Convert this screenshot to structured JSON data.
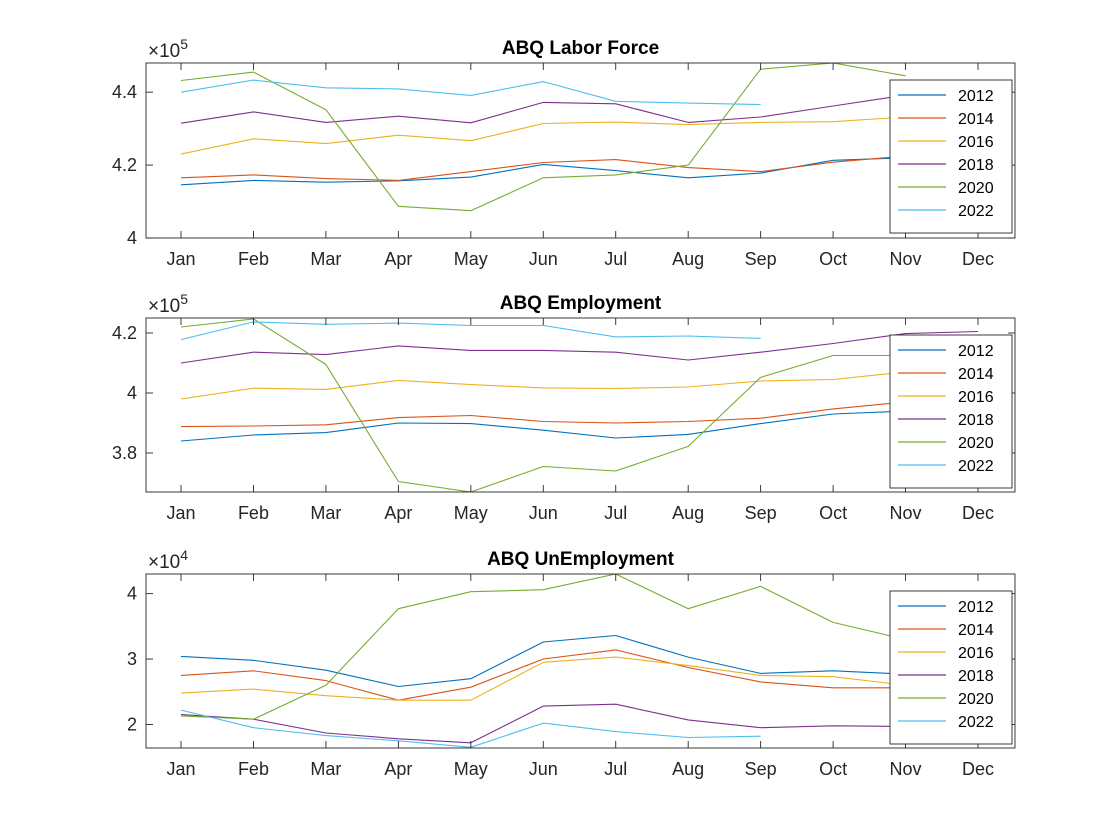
{
  "chart_data": [
    {
      "type": "line",
      "title": "ABQ Labor Force",
      "multiplier": "×10",
      "exponent": "5",
      "categories": [
        "Jan",
        "Feb",
        "Mar",
        "Apr",
        "May",
        "Jun",
        "Jul",
        "Aug",
        "Sep",
        "Oct",
        "Nov",
        "Dec"
      ],
      "ylim": [
        400000,
        448000
      ],
      "yticks": [
        400000,
        420000,
        440000
      ],
      "ytick_labels": [
        "4",
        "4.2",
        "4.4"
      ],
      "legend": "top-right",
      "grid": false,
      "series": [
        {
          "name": "2012",
          "color": "#0072BD",
          "values": [
            414600,
            415800,
            415300,
            415700,
            416700,
            420200,
            418500,
            416500,
            417800,
            421300,
            422000,
            null
          ]
        },
        {
          "name": "2014",
          "color": "#D95319",
          "values": [
            416500,
            417300,
            416300,
            415800,
            418200,
            420700,
            421500,
            419300,
            418200,
            420800,
            422500,
            null
          ]
        },
        {
          "name": "2016",
          "color": "#EDB120",
          "values": [
            423000,
            427200,
            425900,
            428200,
            426700,
            431400,
            431800,
            431100,
            431700,
            431900,
            433200,
            null
          ]
        },
        {
          "name": "2018",
          "color": "#7E2F8E",
          "values": [
            431500,
            434600,
            431700,
            433400,
            431600,
            437200,
            436800,
            431700,
            433200,
            436200,
            439200,
            null
          ]
        },
        {
          "name": "2020",
          "color": "#77AC30",
          "values": [
            443200,
            445500,
            435200,
            408700,
            407500,
            416500,
            417300,
            420000,
            446300,
            448000,
            444500,
            null
          ]
        },
        {
          "name": "2022",
          "color": "#4DBEEE",
          "values": [
            440000,
            443300,
            441200,
            440900,
            439100,
            442900,
            437500,
            437000,
            436600,
            null,
            null,
            null
          ]
        }
      ]
    },
    {
      "type": "line",
      "title": "ABQ Employment",
      "multiplier": "×10",
      "exponent": "5",
      "categories": [
        "Jan",
        "Feb",
        "Mar",
        "Apr",
        "May",
        "Jun",
        "Jul",
        "Aug",
        "Sep",
        "Oct",
        "Nov",
        "Dec"
      ],
      "ylim": [
        367000,
        425000
      ],
      "yticks": [
        380000,
        400000,
        420000
      ],
      "ytick_labels": [
        "3.8",
        "4",
        "4.2"
      ],
      "legend": "top-right",
      "grid": false,
      "series": [
        {
          "name": "2012",
          "color": "#0072BD",
          "values": [
            384000,
            386000,
            386800,
            390000,
            389800,
            387600,
            385000,
            386200,
            389800,
            393000,
            394000,
            null
          ]
        },
        {
          "name": "2014",
          "color": "#D95319",
          "values": [
            388800,
            389000,
            389400,
            391800,
            392500,
            390500,
            390000,
            390500,
            391600,
            394700,
            397000,
            null
          ]
        },
        {
          "name": "2016",
          "color": "#EDB120",
          "values": [
            398000,
            401600,
            401200,
            404200,
            402800,
            401700,
            401500,
            402000,
            404000,
            404500,
            407000,
            null
          ]
        },
        {
          "name": "2018",
          "color": "#7E2F8E",
          "values": [
            410000,
            413600,
            412800,
            415700,
            414200,
            414200,
            413600,
            411000,
            413600,
            416500,
            419800,
            420500
          ]
        },
        {
          "name": "2020",
          "color": "#77AC30",
          "values": [
            422000,
            424700,
            409500,
            370500,
            367000,
            375500,
            374000,
            382200,
            405200,
            412500,
            412500,
            null
          ]
        },
        {
          "name": "2022",
          "color": "#4DBEEE",
          "values": [
            417800,
            423700,
            422900,
            423300,
            422500,
            422500,
            418700,
            419000,
            418200,
            null,
            null,
            null
          ]
        }
      ]
    },
    {
      "type": "line",
      "title": "ABQ UnEmployment",
      "multiplier": "×10",
      "exponent": "4",
      "categories": [
        "Jan",
        "Feb",
        "Mar",
        "Apr",
        "May",
        "Jun",
        "Jul",
        "Aug",
        "Sep",
        "Oct",
        "Nov",
        "Dec"
      ],
      "ylim": [
        16400,
        43000
      ],
      "yticks": [
        20000,
        30000,
        40000
      ],
      "ytick_labels": [
        "2",
        "3",
        "4"
      ],
      "legend": "top-right",
      "grid": false,
      "series": [
        {
          "name": "2012",
          "color": "#0072BD",
          "values": [
            30400,
            29800,
            28300,
            25800,
            27000,
            32600,
            33600,
            30300,
            27800,
            28200,
            27700,
            null
          ]
        },
        {
          "name": "2014",
          "color": "#D95319",
          "values": [
            27500,
            28200,
            26700,
            23700,
            25700,
            30000,
            31400,
            28700,
            26500,
            25600,
            25600,
            null
          ]
        },
        {
          "name": "2016",
          "color": "#EDB120",
          "values": [
            24800,
            25400,
            24400,
            23700,
            23700,
            29500,
            30300,
            29000,
            27500,
            27300,
            26000,
            null
          ]
        },
        {
          "name": "2018",
          "color": "#7E2F8E",
          "values": [
            21500,
            20800,
            18700,
            17800,
            17200,
            22800,
            23100,
            20700,
            19500,
            19800,
            19700,
            null
          ]
        },
        {
          "name": "2020",
          "color": "#77AC30",
          "values": [
            21300,
            20800,
            26000,
            37700,
            40300,
            40600,
            43000,
            37700,
            41100,
            35600,
            33000,
            null
          ]
        },
        {
          "name": "2022",
          "color": "#4DBEEE",
          "values": [
            22200,
            19500,
            18300,
            17500,
            16500,
            20200,
            18900,
            18000,
            18200,
            null,
            null,
            null
          ]
        }
      ]
    }
  ]
}
